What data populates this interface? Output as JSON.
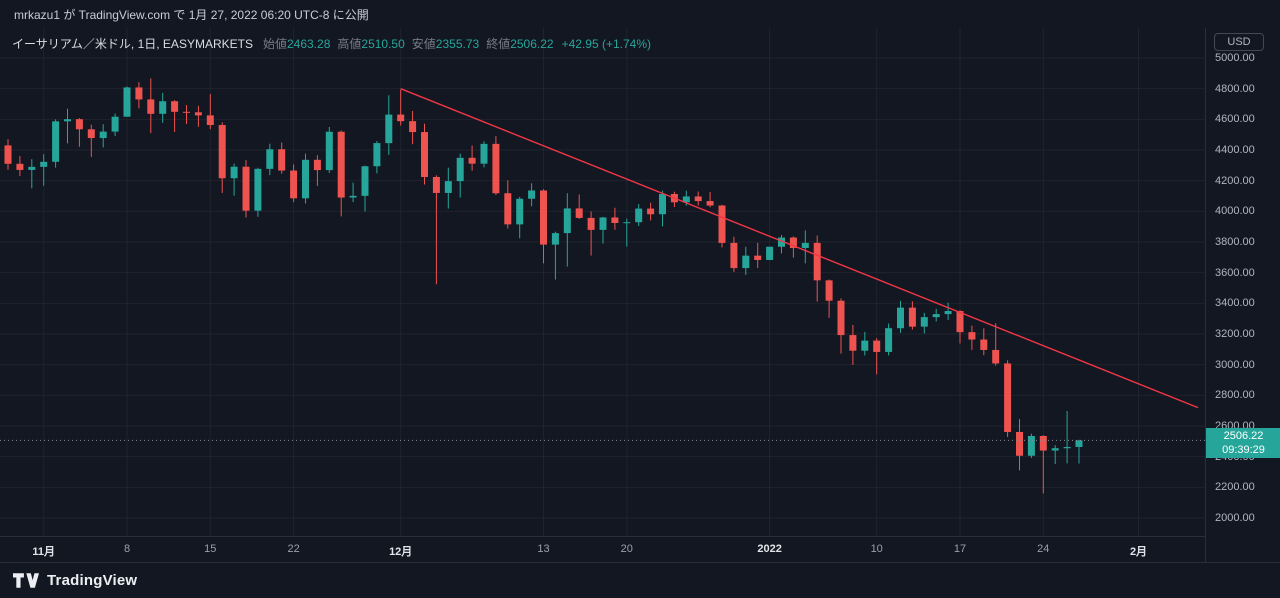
{
  "header": {
    "publish_text": "mrkazu1 が TradingView.com で 1月 27, 2022 06:20 UTC-8 に公開"
  },
  "legend": {
    "title": "イーサリアム／米ドル, 1日, EASYMARKETS",
    "ohlc": [
      {
        "label": "始値",
        "value": "2463.28"
      },
      {
        "label": "高値",
        "value": "2510.50"
      },
      {
        "label": "安値",
        "value": "2355.73"
      },
      {
        "label": "終値",
        "value": "2506.22"
      }
    ],
    "change": "+42.95 (+1.74%)"
  },
  "price_axis": {
    "currency_button_label": "USD",
    "last_price": "2506.22",
    "countdown": "09:39:29"
  },
  "footer": {
    "brand": "TradingView"
  },
  "colors": {
    "background": "#131722",
    "grid": "rgba(42,46,57,0.55)",
    "up": "#26a69a",
    "down": "#ef5350",
    "trendline": "#f23645",
    "last_price_line": "#8a8e99",
    "label_bg": "#26a69a",
    "text_primary": "#d1d4dc",
    "text_secondary": "#787b86",
    "axis_text": "#b2b5be"
  },
  "chart_data": {
    "type": "candlestick",
    "title": "イーサリアム／米ドル, 1日, EASYMARKETS",
    "symbol": "イーサリアム／米ドル",
    "interval": "1日",
    "exchange": "EASYMARKETS",
    "currency": "USD",
    "price_axis": {
      "min": 2000,
      "max": 5000,
      "tick_step": 200
    },
    "last_price": 2506.22,
    "grid": true,
    "time_ticks": [
      {
        "label": "11月",
        "index": 3,
        "major": true
      },
      {
        "label": "8",
        "index": 10,
        "major": false
      },
      {
        "label": "15",
        "index": 17,
        "major": false
      },
      {
        "label": "22",
        "index": 24,
        "major": false
      },
      {
        "label": "12月",
        "index": 33,
        "major": true
      },
      {
        "label": "13",
        "index": 45,
        "major": false
      },
      {
        "label": "20",
        "index": 52,
        "major": false
      },
      {
        "label": "2022",
        "index": 64,
        "major": true
      },
      {
        "label": "10",
        "index": 73,
        "major": false
      },
      {
        "label": "17",
        "index": 80,
        "major": false
      },
      {
        "label": "24",
        "index": 87,
        "major": false
      },
      {
        "label": "2月",
        "index": 95,
        "major": true
      }
    ],
    "trendline": {
      "from": {
        "index": 33,
        "price": 4800
      },
      "to": {
        "index": 100,
        "price": 2720
      }
    },
    "candle_format": [
      "date",
      "open",
      "high",
      "low",
      "close"
    ],
    "candles": [
      [
        "2021-10-29",
        4430,
        4470,
        4270,
        4310
      ],
      [
        "2021-10-30",
        4310,
        4360,
        4230,
        4270
      ],
      [
        "2021-10-31",
        4270,
        4340,
        4150,
        4290
      ],
      [
        "2021-11-01",
        4290,
        4373,
        4167,
        4323
      ],
      [
        "2021-11-02",
        4323,
        4600,
        4285,
        4587
      ],
      [
        "2021-11-03",
        4587,
        4670,
        4443,
        4601
      ],
      [
        "2021-11-04",
        4601,
        4608,
        4421,
        4535
      ],
      [
        "2021-11-05",
        4535,
        4565,
        4355,
        4478
      ],
      [
        "2021-11-06",
        4478,
        4568,
        4417,
        4520
      ],
      [
        "2021-11-07",
        4520,
        4638,
        4491,
        4617
      ],
      [
        "2021-11-08",
        4617,
        4814,
        4617,
        4808
      ],
      [
        "2021-11-09",
        4808,
        4842,
        4672,
        4730
      ],
      [
        "2021-11-10",
        4730,
        4867,
        4510,
        4636
      ],
      [
        "2021-11-11",
        4636,
        4773,
        4577,
        4718
      ],
      [
        "2021-11-12",
        4718,
        4725,
        4518,
        4649
      ],
      [
        "2021-11-13",
        4649,
        4693,
        4570,
        4646
      ],
      [
        "2021-11-14",
        4646,
        4688,
        4551,
        4626
      ],
      [
        "2021-11-15",
        4626,
        4765,
        4536,
        4563
      ],
      [
        "2021-11-16",
        4563,
        4580,
        4120,
        4216
      ],
      [
        "2021-11-17",
        4216,
        4311,
        4102,
        4291
      ],
      [
        "2021-11-18",
        4291,
        4334,
        3960,
        4004
      ],
      [
        "2021-11-19",
        4004,
        4284,
        3964,
        4277
      ],
      [
        "2021-11-20",
        4277,
        4441,
        4236,
        4405
      ],
      [
        "2021-11-21",
        4405,
        4449,
        4245,
        4266
      ],
      [
        "2021-11-22",
        4266,
        4306,
        4060,
        4085
      ],
      [
        "2021-11-23",
        4085,
        4376,
        4051,
        4336
      ],
      [
        "2021-11-24",
        4336,
        4366,
        4166,
        4269
      ],
      [
        "2021-11-25",
        4269,
        4550,
        4250,
        4519
      ],
      [
        "2021-11-26",
        4519,
        4527,
        3967,
        4090
      ],
      [
        "2021-11-27",
        4090,
        4187,
        4060,
        4101
      ],
      [
        "2021-11-28",
        4101,
        4298,
        3999,
        4294
      ],
      [
        "2021-11-29",
        4294,
        4459,
        4248,
        4445
      ],
      [
        "2021-11-30",
        4445,
        4757,
        4368,
        4631
      ],
      [
        "2021-12-01",
        4631,
        4794,
        4560,
        4588
      ],
      [
        "2021-12-02",
        4588,
        4654,
        4438,
        4517
      ],
      [
        "2021-12-03",
        4517,
        4572,
        4175,
        4224
      ],
      [
        "2021-12-04",
        4224,
        4235,
        3525,
        4120
      ],
      [
        "2021-12-05",
        4120,
        4285,
        4018,
        4197
      ],
      [
        "2021-12-06",
        4197,
        4376,
        4090,
        4349
      ],
      [
        "2021-12-07",
        4349,
        4429,
        4265,
        4311
      ],
      [
        "2021-12-08",
        4311,
        4457,
        4287,
        4440
      ],
      [
        "2021-12-09",
        4440,
        4490,
        4107,
        4118
      ],
      [
        "2021-12-10",
        4118,
        4202,
        3888,
        3915
      ],
      [
        "2021-12-11",
        3915,
        4094,
        3824,
        4082
      ],
      [
        "2021-12-12",
        4082,
        4183,
        4033,
        4136
      ],
      [
        "2021-12-13",
        4136,
        4144,
        3661,
        3783
      ],
      [
        "2021-12-14",
        3783,
        3867,
        3555,
        3858
      ],
      [
        "2021-12-15",
        3858,
        4118,
        3640,
        4019
      ],
      [
        "2021-12-16",
        4019,
        4110,
        3951,
        3957
      ],
      [
        "2021-12-17",
        3957,
        3999,
        3712,
        3879
      ],
      [
        "2021-12-18",
        3879,
        3964,
        3790,
        3960
      ],
      [
        "2021-12-19",
        3960,
        4023,
        3880,
        3924
      ],
      [
        "2021-12-20",
        3924,
        3952,
        3770,
        3929
      ],
      [
        "2021-12-21",
        3929,
        4048,
        3904,
        4018
      ],
      [
        "2021-12-22",
        4018,
        4056,
        3941,
        3981
      ],
      [
        "2021-12-23",
        3981,
        4134,
        3902,
        4113
      ],
      [
        "2021-12-24",
        4113,
        4128,
        4028,
        4059
      ],
      [
        "2021-12-25",
        4059,
        4135,
        4037,
        4097
      ],
      [
        "2021-12-26",
        4097,
        4129,
        4038,
        4067
      ],
      [
        "2021-12-27",
        4067,
        4126,
        4027,
        4038
      ],
      [
        "2021-12-28",
        4038,
        4042,
        3765,
        3794
      ],
      [
        "2021-12-29",
        3794,
        3834,
        3605,
        3630
      ],
      [
        "2021-12-30",
        3630,
        3769,
        3585,
        3711
      ],
      [
        "2021-12-31",
        3711,
        3794,
        3630,
        3683
      ],
      [
        "2022-01-01",
        3683,
        3770,
        3682,
        3769
      ],
      [
        "2022-01-02",
        3769,
        3846,
        3725,
        3829
      ],
      [
        "2022-01-03",
        3829,
        3836,
        3698,
        3761
      ],
      [
        "2022-01-04",
        3761,
        3876,
        3661,
        3794
      ],
      [
        "2022-01-05",
        3794,
        3842,
        3412,
        3550
      ],
      [
        "2022-01-06",
        3550,
        3555,
        3306,
        3417
      ],
      [
        "2022-01-07",
        3417,
        3432,
        3072,
        3193
      ],
      [
        "2022-01-08",
        3193,
        3259,
        2998,
        3091
      ],
      [
        "2022-01-09",
        3091,
        3214,
        3060,
        3157
      ],
      [
        "2022-01-10",
        3157,
        3173,
        2937,
        3083
      ],
      [
        "2022-01-11",
        3083,
        3268,
        3060,
        3238
      ],
      [
        "2022-01-12",
        3238,
        3416,
        3207,
        3372
      ],
      [
        "2022-01-13",
        3372,
        3413,
        3229,
        3248
      ],
      [
        "2022-01-14",
        3248,
        3338,
        3204,
        3310
      ],
      [
        "2022-01-15",
        3310,
        3364,
        3282,
        3330
      ],
      [
        "2022-01-16",
        3330,
        3405,
        3291,
        3350
      ],
      [
        "2022-01-17",
        3350,
        3355,
        3138,
        3212
      ],
      [
        "2022-01-18",
        3212,
        3255,
        3096,
        3164
      ],
      [
        "2022-01-19",
        3164,
        3237,
        3062,
        3096
      ],
      [
        "2022-01-20",
        3096,
        3270,
        2994,
        3008
      ],
      [
        "2022-01-21",
        3008,
        3029,
        2528,
        2561
      ],
      [
        "2022-01-22",
        2561,
        2645,
        2311,
        2406
      ],
      [
        "2022-01-23",
        2406,
        2550,
        2391,
        2535
      ],
      [
        "2022-01-24",
        2535,
        2540,
        2160,
        2440
      ],
      [
        "2022-01-25",
        2440,
        2475,
        2352,
        2455
      ],
      [
        "2022-01-26",
        2455,
        2698,
        2356,
        2463.28
      ],
      [
        "2022-01-27",
        2463.28,
        2510.5,
        2355.73,
        2506.22
      ]
    ]
  }
}
